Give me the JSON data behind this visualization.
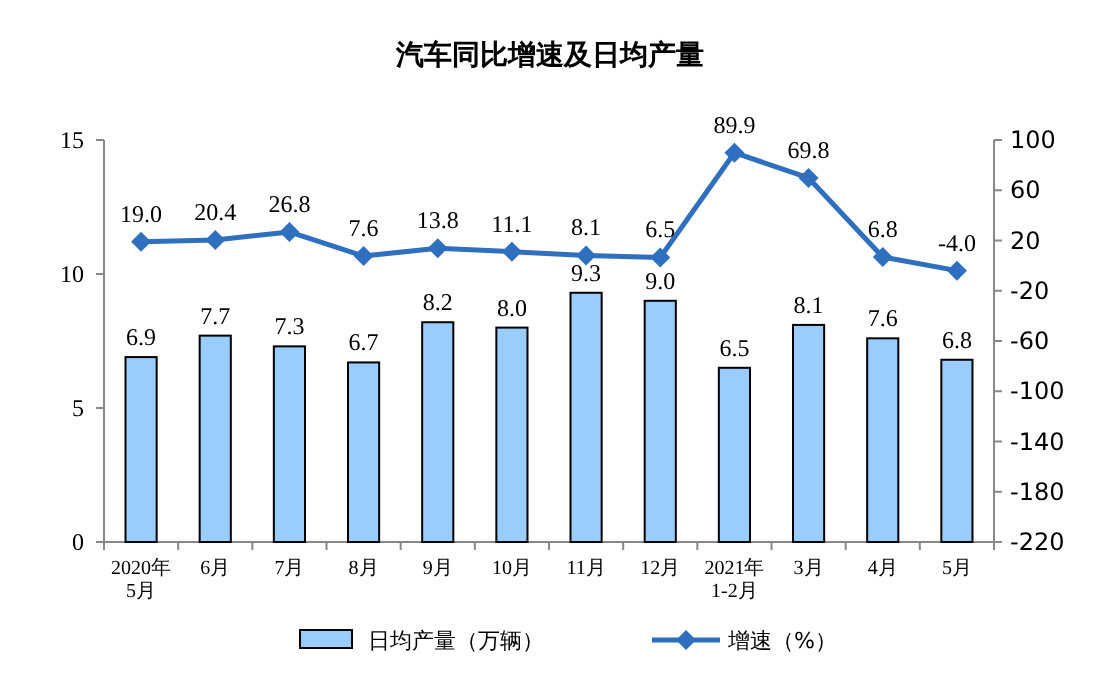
{
  "chart_data": {
    "type": "bar",
    "title": "汽车同比增速及日均产量",
    "categories": [
      "2020年\n5月",
      "6月",
      "7月",
      "8月",
      "9月",
      "10月",
      "11月",
      "12月",
      "2021年\n1-2月",
      "3月",
      "4月",
      "5月"
    ],
    "series": [
      {
        "name": "日均产量（万辆）",
        "color": "#99ccff",
        "values": [
          6.9,
          7.7,
          7.3,
          6.7,
          8.2,
          8.0,
          9.3,
          9.0,
          6.5,
          8.1,
          7.6,
          6.8
        ],
        "value_labels": [
          "6.9",
          "7.7",
          "7.3",
          "6.7",
          "8.2",
          "8.0",
          "9.3",
          "9.0",
          "6.5",
          "8.1",
          "7.6",
          "6.8"
        ]
      },
      {
        "name": "增速（%）",
        "type": "line",
        "axis": "y2",
        "color": "#2e6fbf",
        "marker": "diamond",
        "values": [
          19.0,
          20.4,
          26.8,
          7.6,
          13.8,
          11.1,
          8.1,
          6.5,
          89.9,
          69.8,
          6.8,
          -4.0
        ],
        "value_labels": [
          "19.0",
          "20.4",
          "26.8",
          "7.6",
          "13.8",
          "11.1",
          "8.1",
          "6.5",
          "89.9",
          "69.8",
          "6.8",
          "-4.0"
        ]
      }
    ],
    "ylim": [
      0,
      15
    ],
    "yticks": [
      0,
      5,
      10,
      15
    ],
    "y2lim": [
      -220,
      100
    ],
    "y2ticks": [
      -220,
      -180,
      -140,
      -100,
      -60,
      -20,
      20,
      60,
      100
    ],
    "legend": "bottom",
    "grid": false
  }
}
